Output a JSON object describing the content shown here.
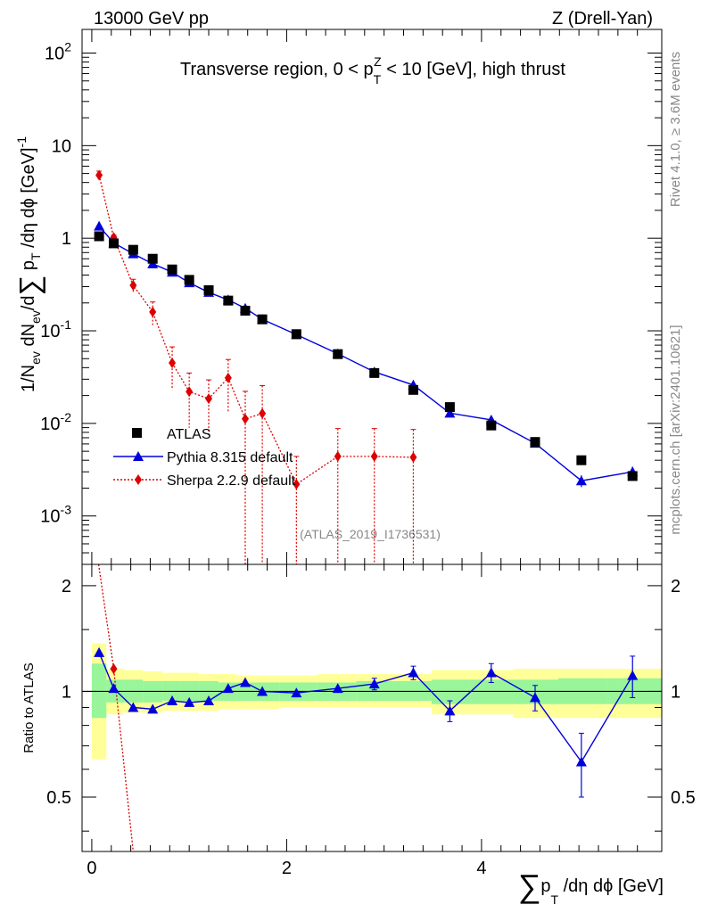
{
  "header": {
    "left": "13000 GeV pp",
    "right": "Z (Drell-Yan)"
  },
  "side_labels": {
    "rivet": "Rivet 4.1.0, ≥ 3.6M events",
    "mcplots": "mcplots.cern.ch [arXiv:2401.10621]"
  },
  "chart_data": {
    "type": "scatter",
    "title": "Transverse region, 0 < pTZ < 10 [GeV], high thrust",
    "title_parts": {
      "pre": "Transverse region, 0 < p",
      "sub": "T",
      "sup": "Z",
      "post": " < 10 [GeV], high thrust"
    },
    "analysis_tag": "(ATLAS_2019_I1736531)",
    "xlabel": {
      "pre": "p",
      "sub": "T",
      "post": " /dη dϕ [GeV]"
    },
    "ylabel": {
      "a": "1/N",
      "a_sub": "ev",
      "b": " dN",
      "b_sub": "ev",
      "c": "/d",
      "d": " p",
      "d_sub": "T",
      "e": " /dη dϕ  [GeV]",
      "e_sup": "-1"
    },
    "ratio_ylabel": "Ratio to ATLAS",
    "sum_glyph": "∑",
    "xlim": [
      -0.1,
      5.85
    ],
    "ylim": [
      0.0003,
      180
    ],
    "ratio_ylim": [
      0.35,
      2.3
    ],
    "x_ticks": [
      0,
      2,
      4
    ],
    "x_tick_labels": [
      "0",
      "2",
      "4"
    ],
    "y_ticks": [
      0.001,
      0.01,
      0.1,
      1,
      10,
      100
    ],
    "y_tick_labels": [
      {
        "base": "10",
        "exp": "-3"
      },
      {
        "base": "10",
        "exp": "-2"
      },
      {
        "base": "10",
        "exp": "-1"
      },
      {
        "base": "1",
        "exp": ""
      },
      {
        "base": "10",
        "exp": ""
      },
      {
        "base": "10",
        "exp": "2"
      }
    ],
    "ratio_ticks": [
      0.5,
      1,
      2
    ],
    "ratio_tick_labels": [
      "0.5",
      "1",
      "2"
    ],
    "legend": [
      {
        "label": "ATLAS",
        "color": "#000000",
        "marker": "square"
      },
      {
        "label": "Pythia 8.315 default",
        "color": "#0000dd",
        "marker": "triangle"
      },
      {
        "label": "Sherpa 2.2.9 default",
        "color": "#dd0000",
        "marker": "diamond"
      }
    ],
    "atlas": {
      "x": [
        0.075,
        0.225,
        0.425,
        0.625,
        0.825,
        1.0,
        1.2,
        1.4,
        1.575,
        1.75,
        2.1,
        2.525,
        2.9,
        3.3,
        3.675,
        4.1,
        4.55,
        5.025,
        5.55
      ],
      "y": [
        1.05,
        0.88,
        0.75,
        0.6,
        0.46,
        0.355,
        0.275,
        0.212,
        0.165,
        0.133,
        0.092,
        0.056,
        0.035,
        0.023,
        0.015,
        0.0095,
        0.0063,
        0.004,
        0.0027
      ],
      "band_lo": [
        0.64,
        0.86,
        0.87,
        0.87,
        0.88,
        0.88,
        0.88,
        0.89,
        0.89,
        0.89,
        0.9,
        0.9,
        0.9,
        0.9,
        0.86,
        0.86,
        0.84,
        0.84,
        0.84
      ],
      "band_hi": [
        1.37,
        1.16,
        1.15,
        1.14,
        1.13,
        1.13,
        1.12,
        1.12,
        1.11,
        1.11,
        1.11,
        1.12,
        1.12,
        1.12,
        1.15,
        1.15,
        1.16,
        1.16,
        1.16
      ],
      "inner_lo": [
        0.84,
        0.93,
        0.93,
        0.93,
        0.94,
        0.94,
        0.94,
        0.94,
        0.94,
        0.94,
        0.94,
        0.94,
        0.94,
        0.94,
        0.92,
        0.92,
        0.92,
        0.92,
        0.92
      ],
      "inner_hi": [
        1.2,
        1.08,
        1.08,
        1.07,
        1.07,
        1.07,
        1.07,
        1.06,
        1.06,
        1.06,
        1.06,
        1.06,
        1.07,
        1.07,
        1.08,
        1.08,
        1.08,
        1.09,
        1.09
      ]
    },
    "pythia": {
      "x": [
        0.075,
        0.225,
        0.425,
        0.625,
        0.825,
        1.0,
        1.2,
        1.4,
        1.575,
        1.75,
        2.1,
        2.525,
        2.9,
        3.3,
        3.675,
        4.1,
        4.55,
        5.025,
        5.55
      ],
      "y": [
        1.35,
        0.89,
        0.68,
        0.53,
        0.43,
        0.33,
        0.26,
        0.216,
        0.175,
        0.133,
        0.091,
        0.0565,
        0.036,
        0.026,
        0.0129,
        0.0109,
        0.0061,
        0.0024,
        0.003
      ],
      "err": [
        0.04,
        0.02,
        0.015,
        0.012,
        0.01,
        0.008,
        0.006,
        0.005,
        0.004,
        0.003,
        0.002,
        0.0015,
        0.001,
        0.0012,
        0.0008,
        0.0008,
        0.0005,
        0.00035,
        0.0004
      ],
      "ratio": [
        1.29,
        1.02,
        0.9,
        0.89,
        0.94,
        0.93,
        0.94,
        1.02,
        1.06,
        1.0,
        0.99,
        1.02,
        1.05,
        1.13,
        0.88,
        1.13,
        0.96,
        0.63,
        1.11
      ],
      "ratio_err": [
        0.02,
        0.02,
        0.015,
        0.015,
        0.015,
        0.015,
        0.015,
        0.02,
        0.025,
        0.03,
        0.02,
        0.03,
        0.04,
        0.05,
        0.06,
        0.07,
        0.08,
        0.13,
        0.15
      ]
    },
    "sherpa": {
      "x": [
        0.075,
        0.225,
        0.425,
        0.625,
        0.825,
        1.0,
        1.2,
        1.4,
        1.575,
        1.75,
        2.1,
        2.525,
        2.9,
        3.3
      ],
      "y": [
        4.8,
        1.02,
        0.31,
        0.16,
        0.045,
        0.022,
        0.0185,
        0.031,
        0.0112,
        0.0128,
        0.0022,
        0.0044,
        0.0044,
        0.0043
      ],
      "err_lo": [
        0.5,
        0.06,
        0.05,
        0.045,
        0.022,
        0.013,
        0.011,
        0.018,
        0.011,
        0.0128,
        0.0022,
        0.0044,
        0.0044,
        0.0043
      ],
      "err_hi": [
        0.5,
        0.06,
        0.05,
        0.045,
        0.022,
        0.013,
        0.011,
        0.018,
        0.011,
        0.0128,
        0.0022,
        0.0044,
        0.0044,
        0.0043
      ],
      "ratio_first": 1.16,
      "ratio_line": [
        [
          0.07,
          2.3
        ],
        [
          0.225,
          1.16
        ],
        [
          0.425,
          0.35
        ]
      ]
    }
  }
}
